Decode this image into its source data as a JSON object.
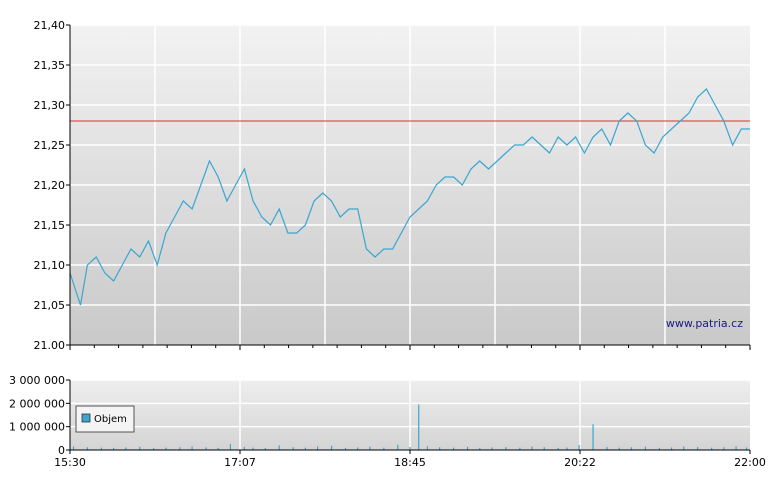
{
  "watermark": "www.patria.cz",
  "colors": {
    "price_line": "#3aa6d0",
    "reference_line": "#d43030",
    "volume_bar": "#3aa6d0",
    "grid": "#ffffff",
    "bg_top": "#f2f2f2",
    "bg_bottom": "#c9c9c9"
  },
  "chart_data": [
    {
      "type": "line",
      "title": "",
      "xlabel": "",
      "ylabel": "",
      "ylim": [
        21.0,
        21.4
      ],
      "y_ticks": [
        "21.00",
        "21,05",
        "21,10",
        "21,15",
        "21,20",
        "21,25",
        "21,30",
        "21,35",
        "21,40"
      ],
      "x_ticks": [
        "15:30",
        "17:07",
        "18:45",
        "20:22",
        "22:00"
      ],
      "xlim": [
        "15:30",
        "22:00"
      ],
      "grid": true,
      "reference_line": 21.28,
      "series": [
        {
          "x": [
            "15:30",
            "15:33",
            "15:36",
            "15:40",
            "15:45",
            "15:50",
            "15:55",
            "16:00",
            "16:05",
            "16:10",
            "16:15",
            "16:20",
            "16:25",
            "16:30",
            "16:35",
            "16:40",
            "16:45",
            "16:50",
            "16:55",
            "17:00",
            "17:05",
            "17:10",
            "17:15",
            "17:20",
            "17:25",
            "17:30",
            "17:35",
            "17:40",
            "17:45",
            "17:50",
            "17:55",
            "18:00",
            "18:05",
            "18:10",
            "18:15",
            "18:20",
            "18:25",
            "18:30",
            "18:35",
            "18:40",
            "18:45",
            "18:50",
            "18:55",
            "19:00",
            "19:05",
            "19:10",
            "19:15",
            "19:20",
            "19:25",
            "19:30",
            "19:35",
            "19:40",
            "19:45",
            "19:50",
            "19:55",
            "20:00",
            "20:05",
            "20:10",
            "20:15",
            "20:20",
            "20:25",
            "20:30",
            "20:35",
            "20:40",
            "20:45",
            "20:50",
            "20:55",
            "21:00",
            "21:05",
            "21:10",
            "21:15",
            "21:20",
            "21:25",
            "21:30",
            "21:35",
            "21:40",
            "21:45",
            "21:50",
            "21:55",
            "22:00"
          ],
          "values": [
            21.09,
            21.07,
            21.05,
            21.1,
            21.11,
            21.09,
            21.08,
            21.1,
            21.12,
            21.11,
            21.13,
            21.1,
            21.14,
            21.16,
            21.18,
            21.17,
            21.2,
            21.23,
            21.21,
            21.18,
            21.2,
            21.22,
            21.18,
            21.16,
            21.15,
            21.17,
            21.14,
            21.14,
            21.15,
            21.18,
            21.19,
            21.18,
            21.16,
            21.17,
            21.17,
            21.12,
            21.11,
            21.12,
            21.12,
            21.14,
            21.16,
            21.17,
            21.18,
            21.2,
            21.21,
            21.21,
            21.2,
            21.22,
            21.23,
            21.22,
            21.23,
            21.24,
            21.25,
            21.25,
            21.26,
            21.25,
            21.24,
            21.26,
            21.25,
            21.26,
            21.24,
            21.26,
            21.27,
            21.25,
            21.28,
            21.29,
            21.28,
            21.25,
            21.24,
            21.26,
            21.27,
            21.28,
            21.29,
            21.31,
            21.32,
            21.3,
            21.28,
            21.25,
            21.27,
            21.27
          ]
        }
      ]
    },
    {
      "type": "bar",
      "title": "",
      "xlabel": "",
      "ylabel": "",
      "ylim": [
        0,
        3000000
      ],
      "y_ticks": [
        "0",
        "1 000 000",
        "2 000 000",
        "3 000 000"
      ],
      "x_ticks": [
        "15:30",
        "17:07",
        "18:45",
        "20:22",
        "22:00"
      ],
      "legend": {
        "position": "left",
        "entries": [
          "Objem"
        ]
      },
      "series": [
        {
          "name": "Objem",
          "x": [
            "15:32",
            "15:40",
            "15:48",
            "15:55",
            "16:02",
            "16:10",
            "16:18",
            "16:25",
            "16:33",
            "16:40",
            "16:48",
            "16:55",
            "17:02",
            "17:10",
            "17:15",
            "17:22",
            "17:30",
            "17:38",
            "17:45",
            "17:52",
            "18:00",
            "18:08",
            "18:15",
            "18:22",
            "18:30",
            "18:38",
            "18:45",
            "18:50",
            "18:55",
            "19:02",
            "19:10",
            "19:18",
            "19:25",
            "19:32",
            "19:40",
            "19:48",
            "19:55",
            "20:02",
            "20:10",
            "20:15",
            "20:22",
            "20:30",
            "20:38",
            "20:45",
            "20:52",
            "21:00",
            "21:08",
            "21:15",
            "21:22",
            "21:30",
            "21:38",
            "21:45",
            "21:52",
            "21:58"
          ],
          "values": [
            150000,
            120000,
            100000,
            90000,
            110000,
            140000,
            80000,
            100000,
            120000,
            150000,
            110000,
            90000,
            250000,
            130000,
            100000,
            80000,
            200000,
            120000,
            100000,
            150000,
            180000,
            90000,
            110000,
            140000,
            100000,
            220000,
            130000,
            1950000,
            160000,
            120000,
            100000,
            140000,
            90000,
            110000,
            130000,
            100000,
            150000,
            120000,
            90000,
            110000,
            210000,
            1100000,
            130000,
            100000,
            120000,
            140000,
            90000,
            110000,
            150000,
            130000,
            100000,
            120000,
            160000,
            110000
          ]
        }
      ]
    }
  ]
}
